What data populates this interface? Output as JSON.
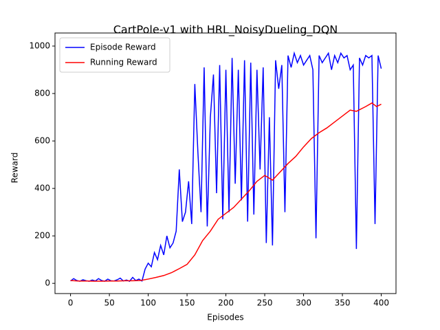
{
  "chart_data": {
    "type": "line",
    "title": "CartPole-v1 with HRL_NoisyDueling_DQN",
    "x_label": "Episodes",
    "y_label": "Reward",
    "xlim": [
      -20,
      419
    ],
    "ylim": [
      -43,
      1055
    ],
    "xticks": [
      0,
      50,
      100,
      150,
      200,
      250,
      300,
      350,
      400
    ],
    "yticks": [
      0,
      200,
      400,
      600,
      800,
      1000
    ],
    "legend": "upper left",
    "grid": false,
    "series": [
      {
        "name": "Episode Reward",
        "color": "#0000ff",
        "x": [
          0,
          4,
          8,
          12,
          16,
          20,
          24,
          28,
          32,
          36,
          40,
          44,
          48,
          52,
          56,
          60,
          64,
          68,
          72,
          76,
          80,
          84,
          88,
          92,
          96,
          100,
          104,
          108,
          112,
          116,
          120,
          124,
          128,
          132,
          136,
          140,
          144,
          148,
          152,
          156,
          160,
          164,
          168,
          172,
          176,
          180,
          184,
          188,
          192,
          196,
          200,
          204,
          208,
          212,
          216,
          220,
          224,
          228,
          232,
          236,
          240,
          244,
          248,
          252,
          256,
          260,
          264,
          268,
          272,
          276,
          280,
          284,
          288,
          292,
          296,
          300,
          304,
          308,
          312,
          316,
          320,
          324,
          328,
          332,
          336,
          340,
          344,
          348,
          352,
          356,
          360,
          364,
          368,
          372,
          376,
          380,
          384,
          388,
          392,
          396,
          400
        ],
        "values": [
          10,
          20,
          12,
          9,
          15,
          11,
          9,
          14,
          10,
          20,
          12,
          9,
          18,
          11,
          10,
          15,
          22,
          10,
          14,
          9,
          25,
          12,
          18,
          10,
          60,
          85,
          70,
          130,
          100,
          160,
          120,
          200,
          150,
          170,
          220,
          480,
          260,
          300,
          430,
          250,
          840,
          550,
          300,
          910,
          240,
          700,
          880,
          380,
          920,
          270,
          900,
          300,
          950,
          420,
          900,
          350,
          940,
          260,
          930,
          290,
          900,
          480,
          910,
          170,
          700,
          160,
          940,
          820,
          920,
          300,
          960,
          910,
          970,
          930,
          960,
          920,
          940,
          960,
          900,
          190,
          960,
          930,
          950,
          970,
          900,
          960,
          930,
          970,
          950,
          960,
          900,
          920,
          145,
          950,
          920,
          960,
          950,
          960,
          250,
          960,
          905
        ]
      },
      {
        "name": "Running Reward",
        "color": "#ff0000",
        "x": [
          0,
          10,
          20,
          30,
          40,
          50,
          60,
          70,
          80,
          90,
          100,
          110,
          120,
          130,
          140,
          150,
          160,
          170,
          180,
          190,
          200,
          210,
          220,
          230,
          240,
          250,
          260,
          270,
          280,
          290,
          300,
          310,
          320,
          330,
          340,
          350,
          360,
          368,
          380,
          388,
          394,
          400
        ],
        "values": [
          12,
          10,
          10,
          9,
          9,
          10,
          10,
          11,
          11,
          12,
          18,
          25,
          33,
          45,
          62,
          80,
          120,
          180,
          220,
          270,
          295,
          320,
          355,
          390,
          430,
          455,
          435,
          470,
          505,
          535,
          575,
          610,
          635,
          655,
          680,
          705,
          730,
          725,
          745,
          760,
          745,
          755
        ]
      }
    ]
  }
}
